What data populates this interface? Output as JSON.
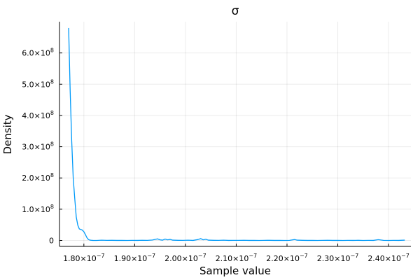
{
  "chart_data": {
    "type": "line",
    "title": "σ",
    "xlabel": "Sample value",
    "ylabel": "Density",
    "grid": true,
    "legend": "none",
    "xlim": [
      1.752e-07,
      2.444e-07
    ],
    "ylim": [
      -19000000.0,
      700000000.0
    ],
    "x_ticks": [
      {
        "value": 1.8e-07,
        "mantissa": "1.80×10",
        "exp": "−7"
      },
      {
        "value": 1.9e-07,
        "mantissa": "1.90×10",
        "exp": "−7"
      },
      {
        "value": 2e-07,
        "mantissa": "2.00×10",
        "exp": "−7"
      },
      {
        "value": 2.1e-07,
        "mantissa": "2.10×10",
        "exp": "−7"
      },
      {
        "value": 2.2e-07,
        "mantissa": "2.20×10",
        "exp": "−7"
      },
      {
        "value": 2.3e-07,
        "mantissa": "2.30×10",
        "exp": "−7"
      },
      {
        "value": 2.4e-07,
        "mantissa": "2.40×10",
        "exp": "−7"
      }
    ],
    "y_ticks": [
      {
        "value": 0,
        "mantissa": "0",
        "exp": ""
      },
      {
        "value": 100000000.0,
        "mantissa": "1.0×10",
        "exp": "8"
      },
      {
        "value": 200000000.0,
        "mantissa": "2.0×10",
        "exp": "8"
      },
      {
        "value": 300000000.0,
        "mantissa": "3.0×10",
        "exp": "8"
      },
      {
        "value": 400000000.0,
        "mantissa": "4.0×10",
        "exp": "8"
      },
      {
        "value": 500000000.0,
        "mantissa": "5.0×10",
        "exp": "8"
      },
      {
        "value": 600000000.0,
        "mantissa": "6.0×10",
        "exp": "8"
      }
    ],
    "series": [
      {
        "color": "#009af9",
        "x": [
          1.77e-07,
          1.773e-07,
          1.776e-07,
          1.779e-07,
          1.782e-07,
          1.785e-07,
          1.788e-07,
          1.791e-07,
          1.794e-07,
          1.797e-07,
          1.8e-07,
          1.803e-07,
          1.806e-07,
          1.809e-07,
          1.812e-07,
          1.815e-07,
          1.818e-07,
          1.825e-07,
          1.835e-07,
          1.845e-07,
          1.855e-07,
          1.865e-07,
          1.875e-07,
          1.885e-07,
          1.895e-07,
          1.905e-07,
          1.915e-07,
          1.925e-07,
          1.935e-07,
          1.945e-07,
          1.95e-07,
          1.955e-07,
          1.96e-07,
          1.965e-07,
          1.97e-07,
          1.975e-07,
          1.985e-07,
          1.995e-07,
          2.005e-07,
          2.015e-07,
          2.025e-07,
          2.03e-07,
          2.035e-07,
          2.04e-07,
          2.045e-07,
          2.055e-07,
          2.065e-07,
          2.075e-07,
          2.085e-07,
          2.095e-07,
          2.105e-07,
          2.115e-07,
          2.125e-07,
          2.135e-07,
          2.145e-07,
          2.155e-07,
          2.165e-07,
          2.175e-07,
          2.185e-07,
          2.195e-07,
          2.205e-07,
          2.215e-07,
          2.22e-07,
          2.23e-07,
          2.24e-07,
          2.25e-07,
          2.26e-07,
          2.27e-07,
          2.28e-07,
          2.29e-07,
          2.3e-07,
          2.31e-07,
          2.32e-07,
          2.33e-07,
          2.34e-07,
          2.35e-07,
          2.36e-07,
          2.37e-07,
          2.38e-07,
          2.39e-07,
          2.4e-07,
          2.41e-07,
          2.42e-07,
          2.432e-07
        ],
        "y": [
          680000000.0,
          480000000.0,
          320000000.0,
          200000000.0,
          135000000.0,
          75000000.0,
          49000000.0,
          37000000.0,
          35000000.0,
          33000000.0,
          28000000.0,
          19000000.0,
          9000000.0,
          3000000.0,
          1000000.0,
          500000.0,
          200000.0,
          100000.0,
          800000.0,
          300000.0,
          500000.0,
          200000.0,
          400000.0,
          100000.0,
          300000.0,
          200000.0,
          600000.0,
          300000.0,
          1500000.0,
          5000000.0,
          2000000.0,
          1000000.0,
          4500000.0,
          2000000.0,
          3500000.0,
          1000000.0,
          500000.0,
          300000.0,
          800000.0,
          200000.0,
          3000000.0,
          6000000.0,
          2000000.0,
          4000000.0,
          1000000.0,
          500000.0,
          300000.0,
          800000.0,
          200000.0,
          400000.0,
          300000.0,
          600000.0,
          200000.0,
          400000.0,
          100000.0,
          300000.0,
          500000.0,
          200000.0,
          400000.0,
          100000.0,
          300000.0,
          3000000.0,
          1000000.0,
          500000.0,
          200000.0,
          400000.0,
          100000.0,
          300000.0,
          600000.0,
          200000.0,
          400000.0,
          100000.0,
          300000.0,
          200000.0,
          500000.0,
          100000.0,
          300000.0,
          200000.0,
          2500000.0,
          400000.0,
          100000.0,
          300000.0,
          200000.0,
          1000000.0
        ]
      }
    ]
  }
}
